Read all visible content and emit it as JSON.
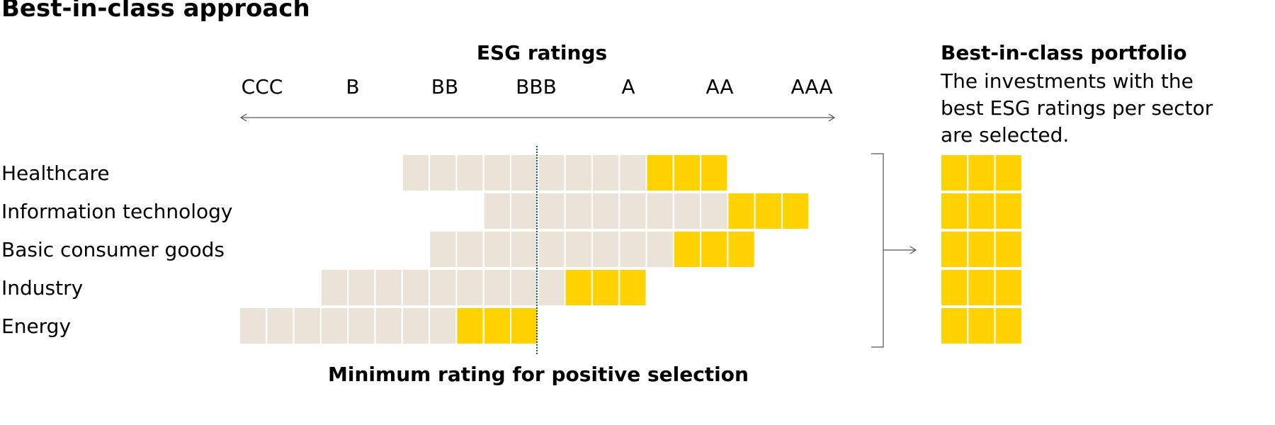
{
  "title": "Best-in-class approach",
  "esg_header": "ESG ratings",
  "ratings": [
    "CCC",
    "B",
    "BB",
    "BBB",
    "A",
    "AA",
    "AAA"
  ],
  "sectors": [
    {
      "label": "Healthcare",
      "start_col": 6,
      "end_col": 18,
      "selected_from": 15
    },
    {
      "label": "Information technology",
      "start_col": 9,
      "end_col": 21,
      "selected_from": 18
    },
    {
      "label": "Basic consumer goods",
      "start_col": 7,
      "end_col": 19,
      "selected_from": 16
    },
    {
      "label": "Industry",
      "start_col": 3,
      "end_col": 15,
      "selected_from": 12
    },
    {
      "label": "Energy",
      "start_col": 0,
      "end_col": 11,
      "selected_from": 8
    }
  ],
  "min_rating": "BBB",
  "min_label": "Minimum rating for positive selection",
  "portfolio": {
    "title": "Best-in-class portfolio",
    "description": "The investments with the best ESG ratings per sector are selected.",
    "rows": 5,
    "cols": 3
  },
  "colors": {
    "grey_cell": "#ebe3d8",
    "selected_cell": "#ffd200",
    "min_label": "#0f5a66",
    "line": "#555555"
  }
}
